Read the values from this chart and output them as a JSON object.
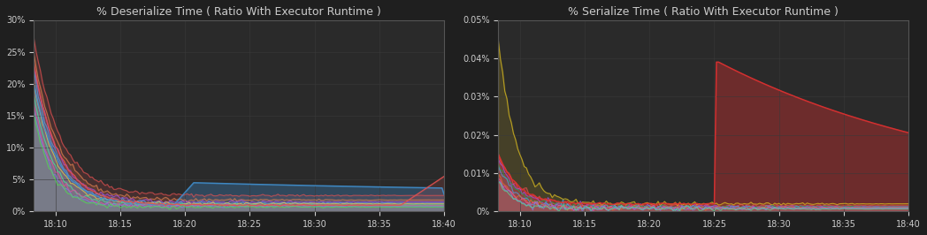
{
  "bg_color": "#1f1f1f",
  "plot_bg_color": "#2a2a2a",
  "text_color": "#cccccc",
  "grid_color": "#3a3a3a",
  "title1": "% Deserialize Time ( Ratio With Executor Runtime )",
  "title2": "% Serialize Time ( Ratio With Executor Runtime )",
  "x_ticks": [
    "18:10",
    "18:15",
    "18:20",
    "18:25",
    "18:30",
    "18:35",
    "18:40"
  ],
  "x_tick_pos": [
    10,
    40,
    70,
    100,
    130,
    160,
    190
  ],
  "deser_ylim": [
    0,
    0.3
  ],
  "ser_ylim": [
    0,
    0.0005
  ],
  "deser_yticks": [
    0,
    0.05,
    0.1,
    0.15,
    0.2,
    0.25,
    0.3
  ],
  "ser_yticks": [
    0,
    0.0001,
    0.0002,
    0.0003,
    0.0004,
    0.0005
  ],
  "n_points": 191
}
